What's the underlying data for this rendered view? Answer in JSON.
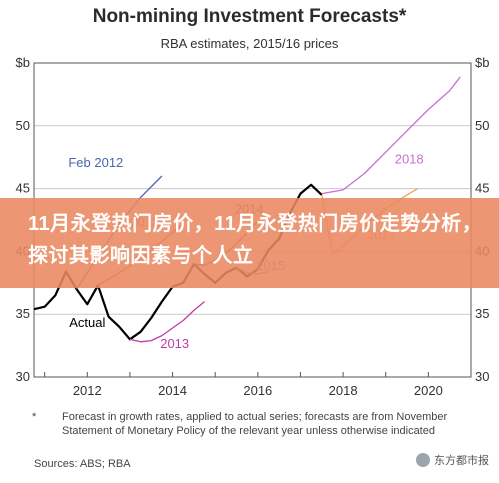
{
  "page": {
    "title": "Non-mining Investment Forecasts*",
    "subtitle": "RBA estimates, 2015/16 prices",
    "footnote_star": "*",
    "footnote_text": "Forecast in growth rates, applied to actual series; forecasts are from November Statement of Monetary Policy of the relevant year unless otherwise indicated",
    "sources": "Sources:   ABS; RBA",
    "banner_text": "11月永登热门房价，11月永登热门房价走势分析，探讨其影响因素与个人立",
    "watermark": "东方都市报"
  },
  "colors": {
    "actual": "#000000",
    "feb2012": "#4a66ad",
    "f2012": "#e0505a",
    "f2013": "#c23aa8",
    "f2014": "#6b6b6b",
    "f2015": "#5aa3d8",
    "f2017": "#f0a35e",
    "f2018": "#c86fd0",
    "banner": "#ea8760"
  },
  "chart_data": {
    "type": "line",
    "title": "Non-mining Investment Forecasts*",
    "subtitle": "RBA estimates, 2015/16 prices",
    "ylabel": "$b",
    "xlim": [
      2010.75,
      2021.0
    ],
    "ylim": [
      30,
      55
    ],
    "yticks": [
      30,
      35,
      40,
      45,
      50,
      55
    ],
    "xticks": [
      2012,
      2014,
      2016,
      2018,
      2020
    ],
    "series": [
      {
        "name": "Actual",
        "color_key": "actual",
        "dashed": false,
        "width": 2.2,
        "points": [
          [
            2010.75,
            35.4
          ],
          [
            2011.0,
            35.6
          ],
          [
            2011.25,
            36.5
          ],
          [
            2011.5,
            38.4
          ],
          [
            2011.75,
            37.0
          ],
          [
            2012.0,
            35.8
          ],
          [
            2012.25,
            37.3
          ],
          [
            2012.5,
            34.8
          ],
          [
            2012.75,
            34.0
          ],
          [
            2013.0,
            33.0
          ],
          [
            2013.25,
            33.6
          ],
          [
            2013.5,
            34.7
          ],
          [
            2013.75,
            36.0
          ],
          [
            2014.0,
            37.2
          ],
          [
            2014.25,
            37.5
          ],
          [
            2014.5,
            39.0
          ],
          [
            2014.75,
            38.2
          ],
          [
            2015.0,
            37.5
          ],
          [
            2015.25,
            38.3
          ],
          [
            2015.5,
            38.7
          ],
          [
            2015.75,
            38.0
          ],
          [
            2016.0,
            38.6
          ],
          [
            2016.25,
            40.1
          ],
          [
            2016.5,
            41.0
          ],
          [
            2016.75,
            43.0
          ],
          [
            2017.0,
            44.6
          ],
          [
            2017.25,
            45.3
          ],
          [
            2017.5,
            44.5
          ]
        ]
      },
      {
        "name": "Feb 2012",
        "color_key": "feb2012",
        "dashed": false,
        "width": 1.3,
        "points": [
          [
            2011.75,
            37.0
          ],
          [
            2012.25,
            39.6
          ],
          [
            2012.75,
            42.2
          ],
          [
            2013.25,
            44.3
          ],
          [
            2013.75,
            46.0
          ]
        ]
      },
      {
        "name": "2012",
        "color_key": "f2012",
        "dashed": false,
        "width": 1.3,
        "points": [
          [
            2012.25,
            37.3
          ],
          [
            2012.75,
            38.3
          ],
          [
            2013.25,
            39.4
          ],
          [
            2013.75,
            40.8
          ],
          [
            2014.25,
            42.2
          ]
        ]
      },
      {
        "name": "2013",
        "color_key": "f2013",
        "dashed": false,
        "width": 1.3,
        "points": [
          [
            2013.0,
            33.0
          ],
          [
            2013.25,
            32.8
          ],
          [
            2013.5,
            32.9
          ],
          [
            2013.75,
            33.3
          ],
          [
            2014.0,
            33.9
          ],
          [
            2014.25,
            34.5
          ],
          [
            2014.5,
            35.3
          ],
          [
            2014.75,
            36.0
          ]
        ]
      },
      {
        "name": "2014",
        "color_key": "f2014",
        "dashed": false,
        "width": 1.3,
        "points": [
          [
            2014.5,
            39.0
          ],
          [
            2014.75,
            38.9
          ],
          [
            2015.0,
            39.3
          ],
          [
            2015.25,
            39.9
          ],
          [
            2015.5,
            40.6
          ],
          [
            2015.75,
            41.5
          ],
          [
            2016.0,
            42.4
          ]
        ]
      },
      {
        "name": "2015",
        "color_key": "f2015",
        "dashed": false,
        "width": 1.3,
        "points": [
          [
            2015.5,
            38.7
          ],
          [
            2015.75,
            38.3
          ],
          [
            2016.0,
            38.2
          ],
          [
            2016.25,
            38.4
          ]
        ]
      },
      {
        "name": "2017",
        "color_key": "f2017",
        "dashed": false,
        "width": 1.3,
        "points": [
          [
            2017.5,
            44.5
          ],
          [
            2017.75,
            39.8
          ],
          [
            2018.0,
            40.4
          ],
          [
            2018.5,
            42.0
          ],
          [
            2019.0,
            43.4
          ],
          [
            2019.5,
            44.5
          ],
          [
            2019.75,
            45.0
          ]
        ]
      },
      {
        "name": "2018",
        "color_key": "f2018",
        "dashed": false,
        "width": 1.3,
        "points": [
          [
            2017.5,
            44.6
          ],
          [
            2018.0,
            44.9
          ],
          [
            2018.5,
            46.2
          ],
          [
            2019.0,
            47.9
          ],
          [
            2019.5,
            49.6
          ],
          [
            2020.0,
            51.3
          ],
          [
            2020.5,
            52.8
          ],
          [
            2020.75,
            53.9
          ]
        ]
      }
    ],
    "labels": [
      {
        "text": "Feb 2012",
        "x": 2012.2,
        "y": 46.7,
        "color_key": "feb2012"
      },
      {
        "text": "2012",
        "x": 2013.35,
        "y": 42.0,
        "color_key": "f2012"
      },
      {
        "text": "2014",
        "x": 2015.8,
        "y": 43.0,
        "color_key": "f2014"
      },
      {
        "text": "2015",
        "x": 2016.3,
        "y": 38.5,
        "color_key": "f2015"
      },
      {
        "text": "2017",
        "x": 2018.9,
        "y": 41.0,
        "color_key": "f2017"
      },
      {
        "text": "2018",
        "x": 2019.55,
        "y": 47.0,
        "color_key": "f2018"
      },
      {
        "text": "Actual",
        "x": 2012.0,
        "y": 34.0,
        "color_key": "actual"
      },
      {
        "text": "2013",
        "x": 2014.05,
        "y": 32.3,
        "color_key": "f2013"
      }
    ],
    "grid": true,
    "legend": "inline labels"
  }
}
